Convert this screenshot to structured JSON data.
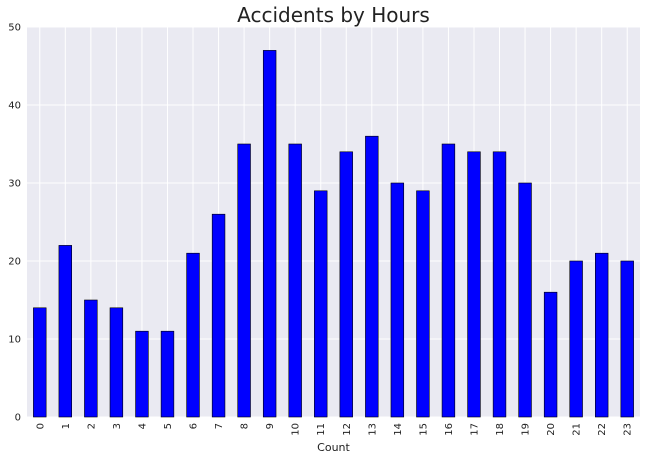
{
  "chart_data": {
    "type": "bar",
    "title": "Accidents by Hours",
    "xlabel": "Count",
    "ylabel": "",
    "categories": [
      "0",
      "1",
      "2",
      "3",
      "4",
      "5",
      "6",
      "7",
      "8",
      "9",
      "10",
      "11",
      "12",
      "13",
      "14",
      "15",
      "16",
      "17",
      "18",
      "19",
      "20",
      "21",
      "22",
      "23"
    ],
    "values": [
      14,
      22,
      15,
      14,
      11,
      11,
      21,
      26,
      35,
      47,
      35,
      29,
      34,
      36,
      30,
      29,
      35,
      34,
      34,
      30,
      16,
      20,
      21,
      20
    ],
    "ylim": [
      0,
      50
    ],
    "yticks": [
      0,
      10,
      20,
      30,
      40,
      50
    ],
    "grid": true,
    "colors": {
      "bar": "#0000ff",
      "bar_edge": "#000000",
      "plot_background": "#eaeaf2",
      "grid": "#ffffff"
    }
  }
}
